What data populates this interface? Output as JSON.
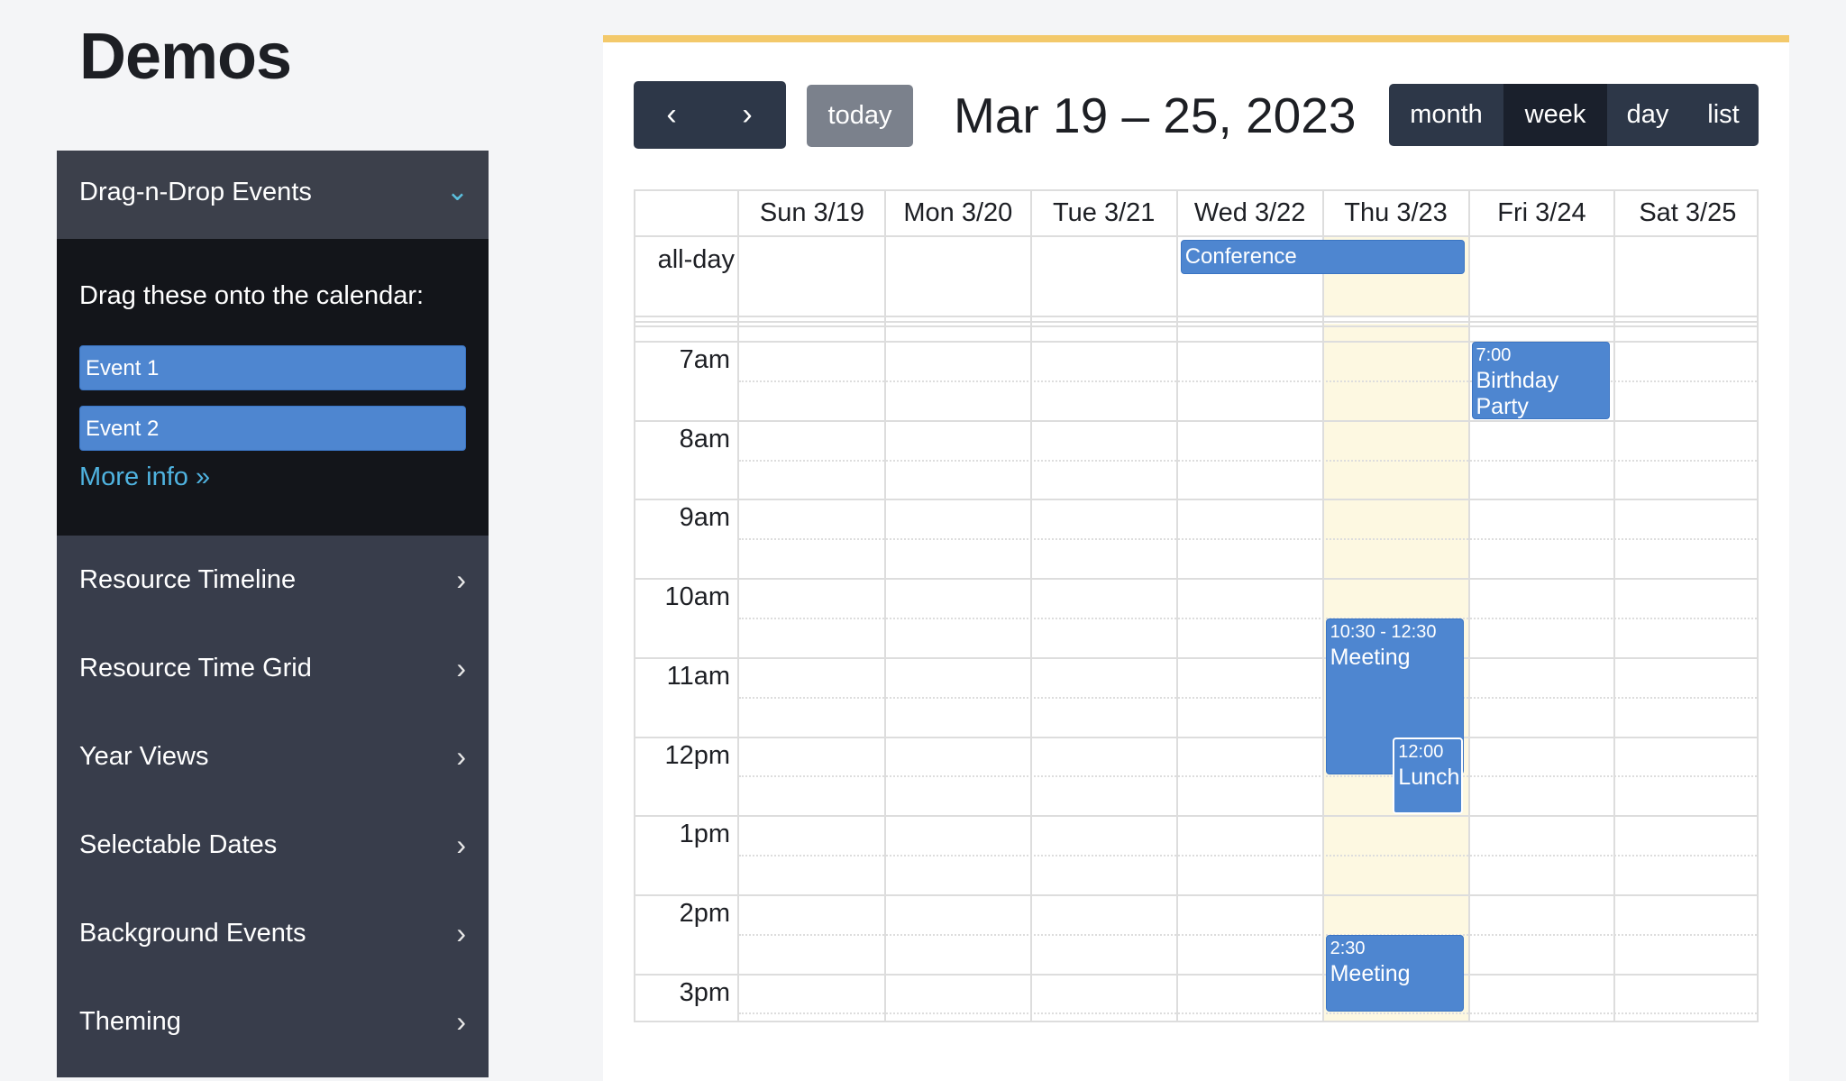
{
  "page_title": "Demos",
  "sidebar": {
    "open_section": {
      "label": "Drag-n-Drop Events",
      "icon": "chevron-down-icon",
      "instructions": "Drag these onto the calendar:",
      "external_events": [
        "Event 1",
        "Event 2"
      ],
      "more_info": "More info »"
    },
    "items": [
      {
        "label": "Resource Timeline"
      },
      {
        "label": "Resource Time Grid"
      },
      {
        "label": "Year Views"
      },
      {
        "label": "Selectable Dates"
      },
      {
        "label": "Background Events"
      },
      {
        "label": "Theming"
      }
    ]
  },
  "toolbar": {
    "prev_icon": "chevron-left-icon",
    "next_icon": "chevron-right-icon",
    "today": "today",
    "title": "Mar 19 – 25, 2023",
    "views": [
      "month",
      "week",
      "day",
      "list"
    ],
    "active_view": "week"
  },
  "calendar": {
    "days": [
      "Sun 3/19",
      "Mon 3/20",
      "Tue 3/21",
      "Wed 3/22",
      "Thu 3/23",
      "Fri 3/24",
      "Sat 3/25"
    ],
    "today_index": 4,
    "all_day_label": "all-day",
    "hours": [
      "7am",
      "8am",
      "9am",
      "10am",
      "11am",
      "12pm",
      "1pm",
      "2pm",
      "3pm"
    ],
    "all_day_events": [
      {
        "title": "Conference",
        "start_day": 3,
        "end_day": 4
      }
    ],
    "events": [
      {
        "day": 5,
        "time": "7:00",
        "title": "Birthday Party",
        "start": 7,
        "end": 8,
        "col": 0,
        "cols": 1
      },
      {
        "day": 4,
        "time": "10:30 - 12:30",
        "title": "Meeting",
        "start": 10.5,
        "end": 12.5,
        "col": 0,
        "cols": 1
      },
      {
        "day": 4,
        "time": "12:00",
        "title": "Lunch",
        "start": 12,
        "end": 13,
        "col": 1,
        "cols": 2
      },
      {
        "day": 4,
        "time": "2:30",
        "title": "Meeting",
        "start": 14.5,
        "end": 15.5,
        "col": 0,
        "cols": 1
      }
    ]
  },
  "colors": {
    "event": "#4e86d0",
    "today_bg": "#fdf8e1",
    "accent_bar": "#f3c96b",
    "button": "#2d3748",
    "link": "#4fb3e0"
  }
}
